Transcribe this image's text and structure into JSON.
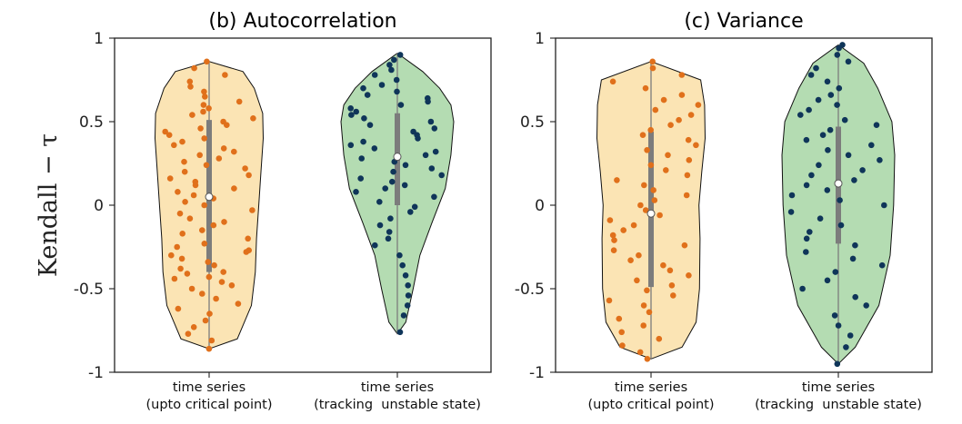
{
  "figure": {
    "ylabel": "Kendall − τ"
  },
  "chart_data": [
    {
      "type": "violin",
      "title": "(b) Autocorrelation",
      "ylabel": "Kendall − τ",
      "ylim": [
        -1,
        1
      ],
      "yticks": [
        {
          "v": 1,
          "t": "1"
        },
        {
          "v": 0.5,
          "t": "0.5"
        },
        {
          "v": 0,
          "t": "0"
        },
        {
          "v": -0.5,
          "t": "-0.5"
        },
        {
          "v": -1,
          "t": "-1"
        }
      ],
      "categories": [
        "time series\n(upto critical point)",
        "time series\n(tracking  unstable state)"
      ],
      "series": [
        {
          "fill": "#fbe4b4",
          "point_color": "#e0701b",
          "min": -0.86,
          "max": 0.86,
          "q1": -0.4,
          "median": 0.05,
          "q3": 0.51,
          "profile": [
            [
              -0.86,
              0.0
            ],
            [
              -0.8,
              0.5
            ],
            [
              -0.6,
              0.75
            ],
            [
              -0.4,
              0.82
            ],
            [
              -0.2,
              0.84
            ],
            [
              0,
              0.88
            ],
            [
              0.2,
              0.92
            ],
            [
              0.4,
              0.96
            ],
            [
              0.55,
              0.95
            ],
            [
              0.7,
              0.8
            ],
            [
              0.8,
              0.6
            ],
            [
              0.86,
              0.0
            ]
          ],
          "points": [
            -0.86,
            -0.81,
            -0.77,
            -0.73,
            -0.69,
            -0.65,
            -0.62,
            -0.59,
            -0.56,
            -0.53,
            -0.5,
            -0.48,
            -0.46,
            -0.44,
            -0.43,
            -0.41,
            -0.4,
            -0.38,
            -0.36,
            -0.34,
            -0.32,
            -0.3,
            -0.28,
            -0.27,
            -0.25,
            -0.23,
            -0.2,
            -0.17,
            -0.15,
            -0.12,
            -0.1,
            -0.08,
            -0.05,
            -0.03,
            0.0,
            0.02,
            0.04,
            0.06,
            0.08,
            0.1,
            0.12,
            0.14,
            0.16,
            0.18,
            0.2,
            0.22,
            0.24,
            0.26,
            0.28,
            0.3,
            0.32,
            0.34,
            0.36,
            0.38,
            0.4,
            0.42,
            0.44,
            0.46,
            0.48,
            0.5,
            0.52,
            0.54,
            0.56,
            0.58,
            0.6,
            0.62,
            0.65,
            0.68,
            0.71,
            0.74,
            0.78,
            0.82,
            0.86
          ]
        },
        {
          "fill": "#b4dcb2",
          "point_color": "#0f3559",
          "min": -0.77,
          "max": 0.91,
          "q1": 0.0,
          "median": 0.29,
          "q3": 0.55,
          "profile": [
            [
              -0.77,
              0.0
            ],
            [
              -0.7,
              0.15
            ],
            [
              -0.5,
              0.28
            ],
            [
              -0.3,
              0.4
            ],
            [
              -0.1,
              0.62
            ],
            [
              0.1,
              0.85
            ],
            [
              0.3,
              0.95
            ],
            [
              0.5,
              1.0
            ],
            [
              0.6,
              0.95
            ],
            [
              0.7,
              0.75
            ],
            [
              0.8,
              0.45
            ],
            [
              0.91,
              0.0
            ]
          ],
          "points": [
            -0.76,
            -0.66,
            -0.6,
            -0.54,
            -0.48,
            -0.42,
            -0.36,
            -0.3,
            -0.24,
            -0.2,
            -0.16,
            -0.12,
            -0.08,
            -0.04,
            -0.01,
            0.02,
            0.05,
            0.08,
            0.1,
            0.12,
            0.14,
            0.16,
            0.18,
            0.2,
            0.22,
            0.24,
            0.26,
            0.28,
            0.3,
            0.32,
            0.34,
            0.36,
            0.38,
            0.4,
            0.42,
            0.44,
            0.46,
            0.48,
            0.5,
            0.52,
            0.54,
            0.56,
            0.58,
            0.6,
            0.62,
            0.64,
            0.66,
            0.68,
            0.7,
            0.72,
            0.75,
            0.78,
            0.81,
            0.84,
            0.87,
            0.9
          ]
        }
      ]
    },
    {
      "type": "violin",
      "title": "(c) Variance",
      "ylim": [
        -1,
        1
      ],
      "yticks": [
        {
          "v": 1,
          "t": "1"
        },
        {
          "v": 0.5,
          "t": "0.5"
        },
        {
          "v": 0,
          "t": "0"
        },
        {
          "v": -0.5,
          "t": "-0.5"
        },
        {
          "v": -1,
          "t": "-1"
        }
      ],
      "categories": [
        "time series\n(upto critical point)",
        "time series\n(tracking  unstable state)"
      ],
      "series": [
        {
          "fill": "#fbe4b4",
          "point_color": "#e0701b",
          "min": -0.92,
          "max": 0.86,
          "q1": -0.49,
          "median": -0.05,
          "q3": 0.44,
          "profile": [
            [
              -0.92,
              0.0
            ],
            [
              -0.85,
              0.55
            ],
            [
              -0.7,
              0.8
            ],
            [
              -0.5,
              0.86
            ],
            [
              -0.2,
              0.87
            ],
            [
              0,
              0.85
            ],
            [
              0.2,
              0.9
            ],
            [
              0.4,
              0.96
            ],
            [
              0.6,
              0.95
            ],
            [
              0.75,
              0.88
            ],
            [
              0.86,
              0.0
            ]
          ],
          "points": [
            -0.92,
            -0.88,
            -0.84,
            -0.8,
            -0.76,
            -0.72,
            -0.68,
            -0.64,
            -0.6,
            -0.57,
            -0.54,
            -0.51,
            -0.48,
            -0.45,
            -0.42,
            -0.39,
            -0.36,
            -0.33,
            -0.3,
            -0.27,
            -0.24,
            -0.21,
            -0.18,
            -0.15,
            -0.12,
            -0.09,
            -0.06,
            -0.03,
            0.0,
            0.03,
            0.06,
            0.09,
            0.12,
            0.15,
            0.18,
            0.21,
            0.24,
            0.27,
            0.3,
            0.33,
            0.36,
            0.39,
            0.42,
            0.45,
            0.48,
            0.51,
            0.54,
            0.57,
            0.6,
            0.63,
            0.66,
            0.7,
            0.74,
            0.78,
            0.82,
            0.86
          ]
        },
        {
          "fill": "#b4dcb2",
          "point_color": "#0f3559",
          "min": -0.95,
          "max": 0.96,
          "q1": -0.23,
          "median": 0.13,
          "q3": 0.47,
          "profile": [
            [
              -0.95,
              0.0
            ],
            [
              -0.85,
              0.3
            ],
            [
              -0.6,
              0.72
            ],
            [
              -0.3,
              0.92
            ],
            [
              0,
              0.98
            ],
            [
              0.3,
              1.0
            ],
            [
              0.5,
              0.95
            ],
            [
              0.7,
              0.7
            ],
            [
              0.85,
              0.45
            ],
            [
              0.96,
              0.0
            ]
          ],
          "points": [
            -0.95,
            -0.85,
            -0.78,
            -0.72,
            -0.66,
            -0.6,
            -0.55,
            -0.5,
            -0.45,
            -0.4,
            -0.36,
            -0.32,
            -0.28,
            -0.24,
            -0.2,
            -0.16,
            -0.12,
            -0.08,
            -0.04,
            0.0,
            0.03,
            0.06,
            0.09,
            0.12,
            0.15,
            0.18,
            0.21,
            0.24,
            0.27,
            0.3,
            0.33,
            0.36,
            0.39,
            0.42,
            0.45,
            0.48,
            0.51,
            0.54,
            0.57,
            0.6,
            0.63,
            0.66,
            0.7,
            0.74,
            0.78,
            0.82,
            0.86,
            0.9,
            0.94,
            0.96
          ]
        }
      ]
    }
  ]
}
